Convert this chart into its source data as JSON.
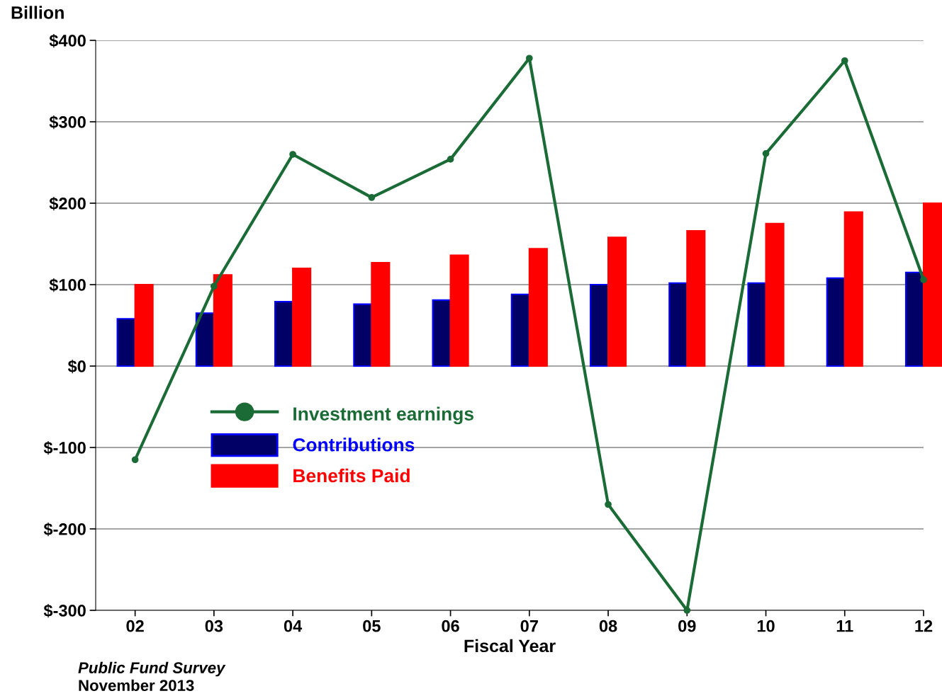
{
  "chart_data": {
    "type": "bar",
    "ylabel": "Billion",
    "xlabel": "Fiscal Year",
    "categories": [
      "02",
      "03",
      "04",
      "05",
      "06",
      "07",
      "08",
      "09",
      "10",
      "11",
      "12"
    ],
    "series": [
      {
        "name": "Investment earnings",
        "type": "line",
        "color": "#1a6b35",
        "values": [
          -115,
          98,
          260,
          207,
          254,
          378,
          -170,
          -300,
          261,
          375,
          106
        ]
      },
      {
        "name": "Contributions",
        "color": "#000066",
        "values": [
          58,
          65,
          79,
          76,
          81,
          88,
          100,
          102,
          102,
          108,
          115
        ]
      },
      {
        "name": "Benefits Paid",
        "color": "#ff0000",
        "values": [
          100,
          112,
          120,
          127,
          136,
          144,
          158,
          166,
          175,
          189,
          200
        ]
      }
    ],
    "ylim": [
      -300,
      400
    ],
    "yticks": [
      {
        "value": -300,
        "label": "$-300"
      },
      {
        "value": -200,
        "label": "$-200"
      },
      {
        "value": -100,
        "label": "$-100"
      },
      {
        "value": 0,
        "label": "$0"
      },
      {
        "value": 100,
        "label": "$100"
      },
      {
        "value": 200,
        "label": "$200"
      },
      {
        "value": 300,
        "label": "$300"
      },
      {
        "value": 400,
        "label": "$400"
      }
    ],
    "grid": "y",
    "legend": "left",
    "marker": "circle",
    "annotations": [
      "Public Fund Survey",
      "November 2013"
    ]
  }
}
